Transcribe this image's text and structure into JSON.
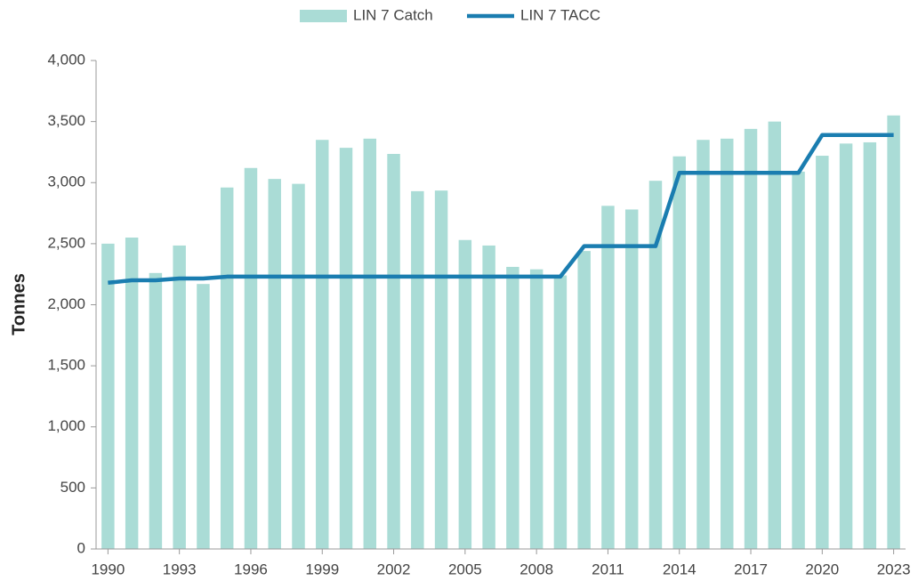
{
  "chart_data": {
    "type": "bar",
    "x": [
      1990,
      1991,
      1992,
      1993,
      1994,
      1995,
      1996,
      1997,
      1998,
      1999,
      2000,
      2001,
      2002,
      2003,
      2004,
      2005,
      2006,
      2007,
      2008,
      2009,
      2010,
      2011,
      2012,
      2013,
      2014,
      2015,
      2016,
      2017,
      2018,
      2019,
      2020,
      2021,
      2022,
      2023
    ],
    "xlim": [
      1989.5,
      2023.5
    ],
    "xticks": [
      1990,
      1993,
      1996,
      1999,
      2002,
      2005,
      2008,
      2011,
      2014,
      2017,
      2020,
      2023
    ],
    "y_label": "Tonnes",
    "ylim": [
      0,
      4000
    ],
    "yticks": [
      0,
      500,
      {
        "value": 1000,
        "label": "1,000"
      },
      {
        "value": 1500,
        "label": "1,500"
      },
      {
        "value": 2000,
        "label": "2,000"
      },
      {
        "value": 2500,
        "label": "2,500"
      },
      {
        "value": 3000,
        "label": "3,000"
      },
      {
        "value": 3500,
        "label": "3,500"
      },
      {
        "value": 4000,
        "label": "4,000"
      }
    ],
    "series": [
      {
        "name": "LIN 7 Catch",
        "type": "bar",
        "color": "#aadcd6",
        "values": [
          2500,
          2550,
          2260,
          2485,
          2170,
          2960,
          3120,
          3030,
          2990,
          3350,
          3285,
          3360,
          3235,
          2930,
          2935,
          2530,
          2485,
          2310,
          2290,
          2240,
          2440,
          2810,
          2780,
          3015,
          3215,
          3350,
          3360,
          3440,
          3500,
          3090,
          3220,
          3320,
          3330,
          3550
        ]
      },
      {
        "name": "LIN 7 TACC",
        "type": "line",
        "color": "#1a7db0",
        "values": [
          2180,
          2200,
          2200,
          2215,
          2215,
          2230,
          2230,
          2230,
          2230,
          2230,
          2230,
          2230,
          2230,
          2230,
          2230,
          2230,
          2230,
          2230,
          2230,
          2230,
          2480,
          2480,
          2480,
          2480,
          3080,
          3080,
          3080,
          3080,
          3080,
          3080,
          3390,
          3390,
          3390,
          3390
        ]
      }
    ]
  }
}
